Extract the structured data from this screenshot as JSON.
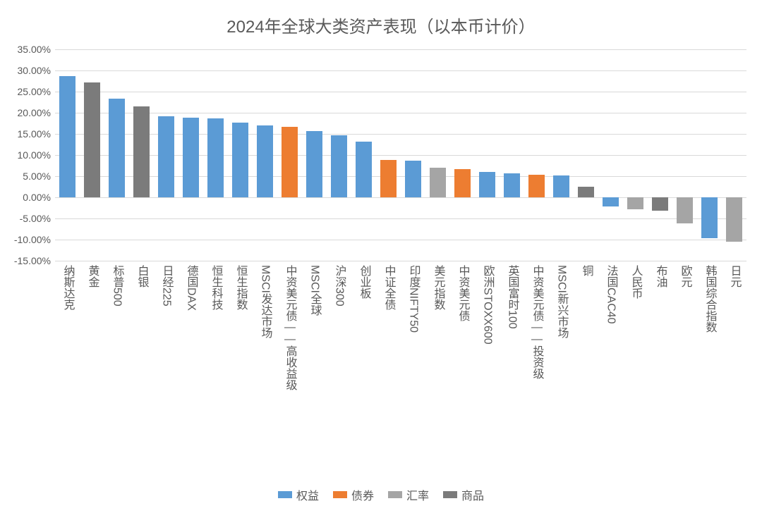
{
  "title": "2024年全球大类资产表现（以本币计价）",
  "chart": {
    "type": "bar",
    "title_fontsize": 24,
    "label_fontsize": 16,
    "ylabel_fontsize": 14,
    "background_color": "#ffffff",
    "grid_color": "#d9d9d9",
    "text_color": "#595959",
    "ylim": [
      -15,
      35
    ],
    "ytick_step": 5,
    "ytick_format": "0.00%",
    "bar_width": 0.68,
    "category_colors": {
      "equity": "#5b9bd5",
      "bond": "#ed7d31",
      "fx": "#a5a5a5",
      "commodity": "#7b7b7b"
    },
    "legend": [
      {
        "key": "equity",
        "label": "权益"
      },
      {
        "key": "bond",
        "label": "债券"
      },
      {
        "key": "fx",
        "label": "汇率"
      },
      {
        "key": "commodity",
        "label": "商品"
      }
    ],
    "data": [
      {
        "label": "纳斯达克",
        "value": 28.6,
        "cat": "equity"
      },
      {
        "label": "黄金",
        "value": 27.2,
        "cat": "commodity"
      },
      {
        "label": "标普500",
        "value": 23.3,
        "cat": "equity"
      },
      {
        "label": "白银",
        "value": 21.5,
        "cat": "commodity"
      },
      {
        "label": "日经225",
        "value": 19.2,
        "cat": "equity"
      },
      {
        "label": "德国DAX",
        "value": 18.8,
        "cat": "equity"
      },
      {
        "label": "恒生科技",
        "value": 18.6,
        "cat": "equity"
      },
      {
        "label": "恒生指数",
        "value": 17.7,
        "cat": "equity"
      },
      {
        "label": "MSCI发达市场",
        "value": 17.0,
        "cat": "equity"
      },
      {
        "label": "中资美元债——高收益级",
        "value": 16.7,
        "cat": "bond"
      },
      {
        "label": "MSCI全球",
        "value": 15.7,
        "cat": "equity"
      },
      {
        "label": "沪深300",
        "value": 14.7,
        "cat": "equity"
      },
      {
        "label": "创业板",
        "value": 13.2,
        "cat": "equity"
      },
      {
        "label": "中证全债",
        "value": 8.8,
        "cat": "bond"
      },
      {
        "label": "印度NIFTY50",
        "value": 8.7,
        "cat": "equity"
      },
      {
        "label": "美元指数",
        "value": 7.0,
        "cat": "fx"
      },
      {
        "label": "中资美元债",
        "value": 6.7,
        "cat": "bond"
      },
      {
        "label": "欧洲STOXX600",
        "value": 6.0,
        "cat": "equity"
      },
      {
        "label": "英国富时100",
        "value": 5.7,
        "cat": "equity"
      },
      {
        "label": "中资美元债——投资级",
        "value": 5.4,
        "cat": "bond"
      },
      {
        "label": "MSCI新兴市场",
        "value": 5.1,
        "cat": "equity"
      },
      {
        "label": "铜",
        "value": 2.5,
        "cat": "commodity"
      },
      {
        "label": "法国CAC40",
        "value": -2.2,
        "cat": "equity"
      },
      {
        "label": "人民币",
        "value": -2.8,
        "cat": "fx"
      },
      {
        "label": "布油",
        "value": -3.1,
        "cat": "commodity"
      },
      {
        "label": "欧元",
        "value": -6.2,
        "cat": "fx"
      },
      {
        "label": "韩国综合指数",
        "value": -9.6,
        "cat": "equity"
      },
      {
        "label": "日元",
        "value": -10.5,
        "cat": "fx"
      }
    ]
  }
}
